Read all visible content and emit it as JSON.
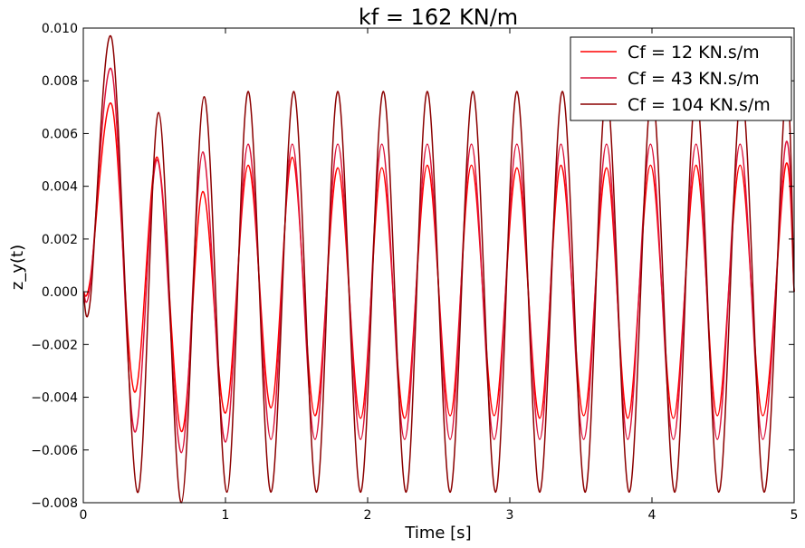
{
  "chart_data": {
    "type": "line",
    "title": "kf = 162 KN/m",
    "xlabel": "Time [s]",
    "ylabel": "z_y(t)",
    "xlim": [
      0,
      5
    ],
    "ylim": [
      -0.008,
      0.01
    ],
    "xticks": [
      0,
      1,
      2,
      3,
      4,
      5
    ],
    "xtick_labels": [
      "0",
      "1",
      "2",
      "3",
      "4",
      "5"
    ],
    "yticks": [
      -0.008,
      -0.006,
      -0.004,
      -0.002,
      0.0,
      0.002,
      0.004,
      0.006,
      0.008,
      0.01
    ],
    "ytick_labels": [
      "−0.008",
      "−0.006",
      "−0.004",
      "−0.002",
      "0.000",
      "0.002",
      "0.004",
      "0.006",
      "0.008",
      "0.010"
    ],
    "grid": false,
    "legend_position": "top-right",
    "series": [
      {
        "name": "Cf = 12 KN.s/m",
        "color": "#ff0000",
        "x": [
          0,
          0.05,
          0.2,
          0.36,
          0.52,
          0.69,
          0.84,
          1.0,
          1.16,
          1.32,
          1.47,
          1.63,
          1.79,
          1.95,
          2.1,
          2.26,
          2.42,
          2.58,
          2.73,
          2.89,
          3.05,
          3.21,
          3.36,
          3.52,
          3.68,
          3.83,
          3.99,
          4.15,
          4.31,
          4.46,
          4.62,
          4.78,
          4.94,
          5.0
        ],
        "y": [
          0,
          0.0005,
          0.0071,
          -0.0038,
          0.0051,
          -0.0053,
          0.0038,
          -0.0046,
          0.0048,
          -0.0044,
          0.0051,
          -0.0047,
          0.0047,
          -0.0048,
          0.0047,
          -0.0048,
          0.0048,
          -0.0047,
          0.0048,
          -0.0047,
          0.0047,
          -0.0048,
          0.0048,
          -0.0047,
          0.0047,
          -0.0048,
          0.0048,
          -0.0048,
          0.0048,
          -0.0047,
          0.0048,
          -0.0047,
          0.0048,
          0.0
        ]
      },
      {
        "name": "Cf = 43 KN.s/m",
        "color": "#dc143c",
        "x": [
          0,
          0.05,
          0.2,
          0.36,
          0.52,
          0.69,
          0.84,
          1.0,
          1.16,
          1.32,
          1.47,
          1.63,
          1.79,
          1.95,
          2.1,
          2.26,
          2.42,
          2.58,
          2.73,
          2.89,
          3.05,
          3.21,
          3.36,
          3.52,
          3.68,
          3.83,
          3.99,
          4.15,
          4.31,
          4.46,
          4.62,
          4.78,
          4.94,
          5.0
        ],
        "y": [
          0,
          0.0003,
          0.0084,
          -0.0053,
          0.005,
          -0.0061,
          0.0053,
          -0.0057,
          0.0056,
          -0.0056,
          0.0056,
          -0.0056,
          0.0056,
          -0.0056,
          0.0056,
          -0.0056,
          0.0056,
          -0.0056,
          0.0056,
          -0.0056,
          0.0056,
          -0.0056,
          0.0056,
          -0.0056,
          0.0056,
          -0.0056,
          0.0056,
          -0.0056,
          0.0056,
          -0.0056,
          0.0056,
          -0.0056,
          0.0056,
          0.0
        ]
      },
      {
        "name": "Cf = 104 KN.s/m",
        "color": "#8b0000",
        "x": [
          0,
          0.05,
          0.2,
          0.38,
          0.53,
          0.69,
          0.85,
          1.01,
          1.16,
          1.32,
          1.48,
          1.64,
          1.79,
          1.95,
          2.11,
          2.27,
          2.42,
          2.58,
          2.74,
          2.9,
          3.05,
          3.21,
          3.37,
          3.53,
          3.68,
          3.84,
          4.0,
          4.16,
          4.31,
          4.47,
          4.63,
          4.79,
          4.94,
          5.0
        ],
        "y": [
          0,
          -0.0003,
          0.0096,
          -0.0076,
          0.0068,
          -0.008,
          0.0074,
          -0.0076,
          0.0076,
          -0.0076,
          0.0076,
          -0.0076,
          0.0076,
          -0.0076,
          0.0076,
          -0.0076,
          0.0076,
          -0.0076,
          0.0076,
          -0.0076,
          0.0076,
          -0.0076,
          0.0076,
          -0.0076,
          0.0076,
          -0.0076,
          0.0076,
          -0.0076,
          0.0076,
          -0.0076,
          0.0076,
          -0.0076,
          0.0076,
          0.0
        ]
      }
    ]
  }
}
